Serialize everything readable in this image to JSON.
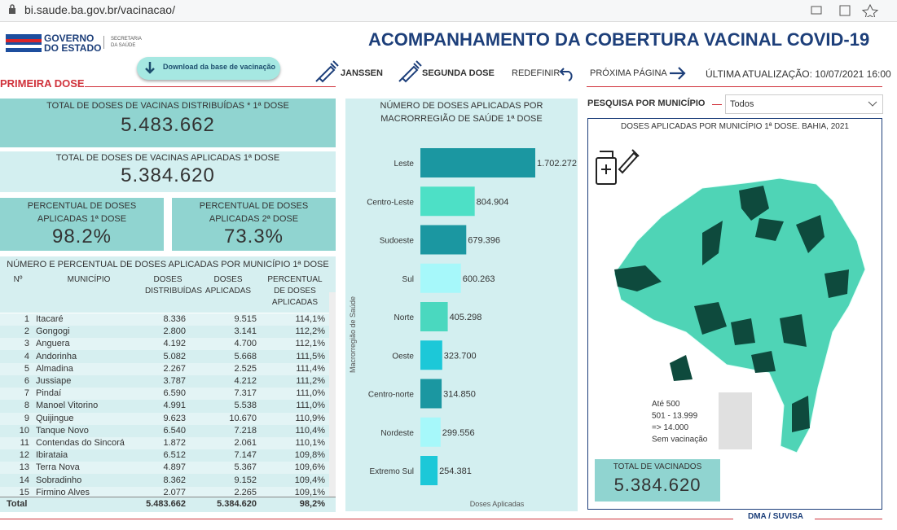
{
  "browser": {
    "url": "bi.saude.ba.gov.br/vacinacao/"
  },
  "header": {
    "logo_line1": "GOVERNO",
    "logo_line2": "DO ESTADO",
    "logo_sub1": "SECRETARIA",
    "logo_sub2": "DA SAÚDE",
    "title": "ACOMPANHAMENTO DA COBERTURA VACINAL COVID-19",
    "download": "Download da base de vacinação",
    "nav": [
      "JANSSEN",
      "SEGUNDA DOSE",
      "REDEFINIR",
      "PRÓXIMA PÁGINA"
    ],
    "updated": "ÚLTIMA ATUALIZAÇÃO: 10/07/2021 16:00",
    "section": "PRIMEIRA DOSE"
  },
  "cards": [
    {
      "label": "TOTAL DE DOSES DE VACINAS DISTRIBUÍDAS * 1ª DOSE",
      "value": "5.483.662"
    },
    {
      "label": "TOTAL DE DOSES DE VACINAS APLICADAS 1ª DOSE",
      "value": "5.384.620"
    },
    {
      "label": "PERCENTUAL DE DOSES APLICADAS 1ª DOSE",
      "value": "98.2%"
    },
    {
      "label": "PERCENTUAL DE DOSES APLICADAS 2ª DOSE",
      "value": "73.3%"
    }
  ],
  "table": {
    "title": "NÚMERO E PERCENTUAL DE DOSES APLICADAS POR MUNICÍPIO 1ª DOSE",
    "columns": [
      "Nº",
      "MUNICÍPIO",
      "DOSES DISTRIBUÍDAS",
      "DOSES APLICADAS",
      "PERCENTUAL DE DOSES APLICADAS"
    ],
    "rows": [
      [
        "1",
        "Itacaré",
        "8.336",
        "9.515",
        "114,1%"
      ],
      [
        "2",
        "Gongogi",
        "2.800",
        "3.141",
        "112,2%"
      ],
      [
        "3",
        "Anguera",
        "4.192",
        "4.700",
        "112,1%"
      ],
      [
        "4",
        "Andorinha",
        "5.082",
        "5.668",
        "111,5%"
      ],
      [
        "5",
        "Almadina",
        "2.267",
        "2.525",
        "111,4%"
      ],
      [
        "6",
        "Jussiape",
        "3.787",
        "4.212",
        "111,2%"
      ],
      [
        "7",
        "Pindaí",
        "6.590",
        "7.317",
        "111,0%"
      ],
      [
        "8",
        "Manoel Vitorino",
        "4.991",
        "5.538",
        "111,0%"
      ],
      [
        "9",
        "Quijingue",
        "9.623",
        "10.670",
        "110,9%"
      ],
      [
        "10",
        "Tanque Novo",
        "6.540",
        "7.218",
        "110,4%"
      ],
      [
        "11",
        "Contendas do Sincorá",
        "1.872",
        "2.061",
        "110,1%"
      ],
      [
        "12",
        "Ibirataia",
        "6.512",
        "7.147",
        "109,8%"
      ],
      [
        "13",
        "Terra Nova",
        "4.897",
        "5.367",
        "109,6%"
      ],
      [
        "14",
        "Sobradinho",
        "8.362",
        "9.152",
        "109,4%"
      ],
      [
        "15",
        "Firmino Alves",
        "2.077",
        "2.265",
        "109,1%"
      ]
    ],
    "total": [
      "Total",
      "5.483.662",
      "5.384.620",
      "98,2%"
    ]
  },
  "chart_data": {
    "type": "bar",
    "orientation": "horizontal",
    "title": "NÚMERO DE DOSES APLICADAS POR MACRORREGIÃO DE SAÚDE 1ª DOSE",
    "y_label": "Macrorregião de Saúde",
    "x_label": "Doses Aplicadas",
    "categories": [
      "Leste",
      "Centro-Leste",
      "Sudoeste",
      "Sul",
      "Norte",
      "Oeste",
      "Centro-norte",
      "Nordeste",
      "Extremo Sul"
    ],
    "values": [
      1702272,
      804904,
      679396,
      600263,
      405298,
      323700,
      314850,
      299556,
      254381
    ],
    "value_labels": [
      "1.702.272",
      "804.904",
      "679.396",
      "600.263",
      "405.298",
      "323.700",
      "314.850",
      "299.556",
      "254.381"
    ],
    "colors": [
      "#1b97a1",
      "#4de0c6",
      "#1b97a1",
      "#a6f8fa",
      "#4ad8bf",
      "#1cc8d8",
      "#1b97a1",
      "#a6f8fa",
      "#1cc8d8"
    ]
  },
  "filter": {
    "label": "PESQUISA POR MUNICÍPIO",
    "value": "Todos"
  },
  "map": {
    "title": "DOSES APLICADAS POR MUNICÍPIO 1ª DOSE. BAHIA, 2021",
    "legend": [
      {
        "label": "Até 500",
        "color": "#a4ead9"
      },
      {
        "label": "501 - 13.999",
        "color": "#4fd4b6"
      },
      {
        "label": "=> 14.000",
        "color": "#0e4a3d"
      },
      {
        "label": "Sem vacinação",
        "color": "#ffffff"
      }
    ]
  },
  "total_card": {
    "label": "TOTAL DE VACINADOS",
    "value": "5.384.620"
  },
  "footer": "DMA / SUVISA"
}
